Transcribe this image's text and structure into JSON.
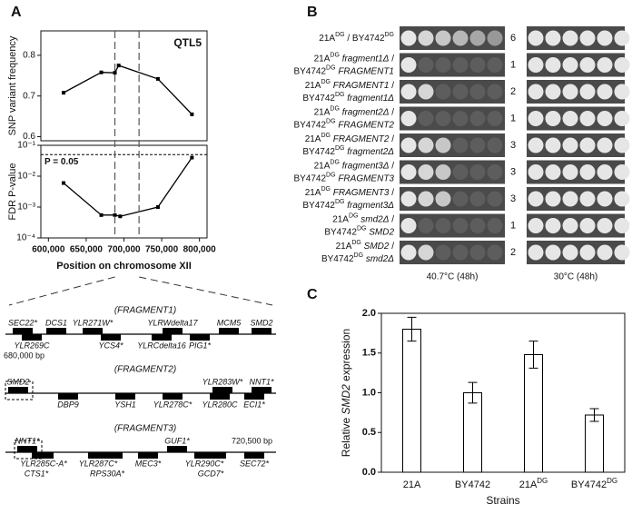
{
  "panel_labels": [
    "A",
    "B",
    "C"
  ],
  "chart_data": [
    {
      "type": "line",
      "ylabel": "SNP variant frequency",
      "annotation": "QTL5",
      "x": [
        620000,
        670000,
        688000,
        693000,
        745000,
        790000
      ],
      "values": [
        0.708,
        0.758,
        0.757,
        0.775,
        0.742,
        0.655
      ],
      "xlim": [
        590000,
        810000
      ],
      "ylim": [
        0.59,
        0.86
      ],
      "yticks": [
        0.6,
        0.7,
        0.8
      ],
      "qtl_bounds": [
        688000,
        720000
      ],
      "color": "#000000"
    },
    {
      "type": "line",
      "ylabel": "FDR P-value",
      "xlabel": "Position on chromosome XII",
      "log_y": true,
      "x": [
        620000,
        670000,
        688000,
        695000,
        745000,
        790000
      ],
      "values": [
        0.006,
        0.00055,
        0.00055,
        0.0005,
        0.001,
        0.04
      ],
      "xlim": [
        590000,
        810000
      ],
      "ylim": [
        0.0001,
        0.1
      ],
      "yticks": [
        {
          "value": 0.0001,
          "label": "10⁻⁴"
        },
        {
          "value": 0.001,
          "label": "10⁻³"
        },
        {
          "value": 0.01,
          "label": "10⁻²"
        },
        {
          "value": 0.1,
          "label": "10⁻¹"
        }
      ],
      "xticks": [
        {
          "value": 600000,
          "label": "600,000"
        },
        {
          "value": 650000,
          "label": "650,000"
        },
        {
          "value": 700000,
          "label": "700,000"
        },
        {
          "value": 750000,
          "label": "750,000"
        },
        {
          "value": 800000,
          "label": "800,000"
        }
      ],
      "threshold": {
        "value": 0.05,
        "label": "P = 0.05"
      },
      "color": "#000000"
    },
    {
      "type": "bar",
      "ylabel": [
        {
          "text": "Relative "
        },
        {
          "text": "SMD2",
          "italic": true
        },
        {
          "text": " expression"
        }
      ],
      "xlabel": "Strains",
      "categories": [
        "21A",
        "BY4742",
        "21A",
        "BY4742"
      ],
      "category_superscripts": [
        null,
        null,
        "DG",
        "DG"
      ],
      "values": [
        1.8,
        1.0,
        1.48,
        0.72
      ],
      "errors": [
        0.15,
        0.13,
        0.17,
        0.08
      ],
      "ylim": [
        0,
        2
      ],
      "yticks": [
        {
          "value": 0,
          "label": "0.0"
        },
        0.5,
        {
          "value": 1,
          "label": "1.0"
        },
        1.5,
        {
          "value": 2,
          "label": "2.0"
        }
      ],
      "color": "#ffffff"
    }
  ],
  "gene_map": {
    "fragments": [
      {
        "title": "(FRAGMENT1)",
        "bp_label": "680,000 bp",
        "genes": [
          "SEC22*",
          "DCS1",
          "YLR271W*",
          "YLRWdelta17",
          "MCM5",
          "SMD2",
          "YLR269C",
          "YCS4*",
          "YLRCdelta16",
          "PIG1*"
        ]
      },
      {
        "title": "(FRAGMENT2)",
        "genes": [
          "SMD2",
          "YLR283W*",
          "NNT1*",
          "DBP9",
          "YSH1",
          "YLR278C*",
          "YLR280C",
          "ECI1*"
        ]
      },
      {
        "title": "(FRAGMENT3)",
        "bp_label": "720,500 bp",
        "genes": [
          "NNT1*",
          "GUF1*",
          "YLR285C-A*",
          "CTS1*",
          "YLR287C*",
          "RPS30A*",
          "MEC3*",
          "YLR290C*",
          "GCD7*",
          "SEC72*"
        ]
      }
    ]
  },
  "spot_assay": {
    "conditions": [
      "40.7°C (48h)",
      "30°C (48h)"
    ],
    "rows": [
      {
        "score": 6,
        "lines": [
          [
            {
              "text": "21A"
            },
            {
              "text": "DG",
              "sup": true
            },
            {
              "text": " / BY4742"
            },
            {
              "text": "DG",
              "sup": true
            }
          ]
        ]
      },
      {
        "score": 1,
        "lines": [
          [
            {
              "text": "21A"
            },
            {
              "text": "DG",
              "sup": true
            },
            {
              "text": " fragment1Δ",
              "italic": true
            },
            {
              "text": " /"
            }
          ],
          [
            {
              "text": "BY4742"
            },
            {
              "text": "DG",
              "sup": true
            },
            {
              "text": " FRAGMENT1",
              "italic": true
            }
          ]
        ]
      },
      {
        "score": 2,
        "lines": [
          [
            {
              "text": "21A"
            },
            {
              "text": "DG",
              "sup": true
            },
            {
              "text": " FRAGMENT1",
              "italic": true
            },
            {
              "text": " /"
            }
          ],
          [
            {
              "text": "BY4742"
            },
            {
              "text": "DG",
              "sup": true
            },
            {
              "text": " fragment1Δ",
              "italic": true
            }
          ]
        ]
      },
      {
        "score": 1,
        "lines": [
          [
            {
              "text": "21A"
            },
            {
              "text": "DG",
              "sup": true
            },
            {
              "text": " fragment2Δ",
              "italic": true
            },
            {
              "text": " /"
            }
          ],
          [
            {
              "text": "BY4742"
            },
            {
              "text": "DG",
              "sup": true
            },
            {
              "text": " FRAGMENT2",
              "italic": true
            }
          ]
        ]
      },
      {
        "score": 3,
        "lines": [
          [
            {
              "text": "21A"
            },
            {
              "text": "DG",
              "sup": true
            },
            {
              "text": " FRAGMENT2",
              "italic": true
            },
            {
              "text": " /"
            }
          ],
          [
            {
              "text": "BY4742"
            },
            {
              "text": "DG",
              "sup": true
            },
            {
              "text": " fragment2Δ",
              "italic": true
            }
          ]
        ]
      },
      {
        "score": 3,
        "lines": [
          [
            {
              "text": "21A"
            },
            {
              "text": "DG",
              "sup": true
            },
            {
              "text": " fragment3Δ",
              "italic": true
            },
            {
              "text": " /"
            }
          ],
          [
            {
              "text": "BY4742"
            },
            {
              "text": "DG",
              "sup": true
            },
            {
              "text": " FRAGMENT3",
              "italic": true
            }
          ]
        ]
      },
      {
        "score": 3,
        "lines": [
          [
            {
              "text": "21A"
            },
            {
              "text": "DG",
              "sup": true
            },
            {
              "text": " FRAGMENT3",
              "italic": true
            },
            {
              "text": " /"
            }
          ],
          [
            {
              "text": "BY4742"
            },
            {
              "text": "DG",
              "sup": true
            },
            {
              "text": " fragment3Δ",
              "italic": true
            }
          ]
        ]
      },
      {
        "score": 1,
        "lines": [
          [
            {
              "text": "21A"
            },
            {
              "text": "DG",
              "sup": true
            },
            {
              "text": " smd2Δ",
              "italic": true
            },
            {
              "text": " /"
            }
          ],
          [
            {
              "text": "BY4742"
            },
            {
              "text": "DG",
              "sup": true
            },
            {
              "text": " SMD2",
              "italic": true
            }
          ]
        ]
      },
      {
        "score": 2,
        "lines": [
          [
            {
              "text": "21A"
            },
            {
              "text": "DG",
              "sup": true
            },
            {
              "text": " SMD2",
              "italic": true
            },
            {
              "text": " /"
            }
          ],
          [
            {
              "text": "BY4742"
            },
            {
              "text": "DG",
              "sup": true
            },
            {
              "text": " smd2Δ",
              "italic": true
            }
          ]
        ]
      }
    ]
  }
}
